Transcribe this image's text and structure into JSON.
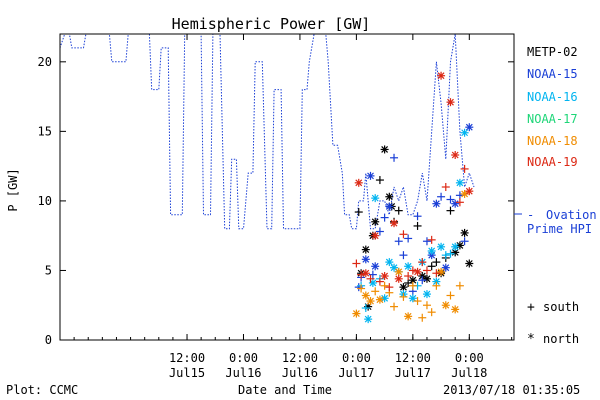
{
  "chart_data": {
    "type": "scatter",
    "title": "Hemispheric Power [GW]",
    "xlabel": "Date and Time",
    "ylabel": "P [GW]",
    "footer_left": "Plot: CCMC",
    "footer_right": "2013/07/18 01:35:05",
    "ylim": [
      0,
      22
    ],
    "xlim_hours": [
      -63,
      33.5
    ],
    "yticks": [
      0,
      5,
      10,
      15,
      20
    ],
    "xticks": [
      {
        "h": -36,
        "time": "12:00",
        "date": "Jul15"
      },
      {
        "h": -24,
        "time": "0:00",
        "date": "Jul16"
      },
      {
        "h": -12,
        "time": "12:00",
        "date": "Jul16"
      },
      {
        "h": 0,
        "time": "0:00",
        "date": "Jul17"
      },
      {
        "h": 12,
        "time": "12:00",
        "date": "Jul17"
      },
      {
        "h": 24,
        "time": "0:00",
        "date": "Jul18"
      }
    ],
    "legend": {
      "series": [
        {
          "name": "METP-02",
          "color": "#000000"
        },
        {
          "name": "NOAA-15",
          "color": "#1a3fd6"
        },
        {
          "name": "NOAA-16",
          "color": "#00b4f0"
        },
        {
          "name": "NOAA-17",
          "color": "#1ed678"
        },
        {
          "name": "NOAA-18",
          "color": "#f08c00"
        },
        {
          "name": "NOAA-19",
          "color": "#dc2814"
        }
      ],
      "model": {
        "name_line1": "Ovation",
        "name_line2": "Prime HPI",
        "color": "#1a3fd6",
        "marker": "- "
      },
      "symbols": [
        {
          "marker": "+",
          "label": "south"
        },
        {
          "marker": "*",
          "label": "north"
        }
      ]
    },
    "ovation_hpi": {
      "x": [
        -63,
        -62,
        -61,
        -60.5,
        -58,
        -57.5,
        -55,
        -53,
        -52.5,
        -52,
        -49,
        -48.5,
        -46,
        -45.5,
        -44,
        -43.5,
        -42,
        -41.5,
        -40,
        -39.5,
        -37,
        -36.5,
        -35,
        -34.5,
        -33,
        -32.5,
        -31,
        -30.5,
        -29,
        -28,
        -27,
        -26.5,
        -25.5,
        -25,
        -24,
        -23,
        -22,
        -21.5,
        -20,
        -19,
        -18,
        -17.5,
        -16,
        -15.5,
        -14,
        -13,
        -12,
        -11.5,
        -10.5,
        -10,
        -9,
        -8.5,
        -7,
        -6.5,
        -6,
        -5,
        -4,
        -3,
        -2.5,
        -1.5,
        -1,
        0,
        0.5,
        1.5,
        2,
        3,
        4,
        5,
        6,
        7,
        8,
        9,
        10,
        11,
        12,
        13,
        14,
        15,
        16,
        17,
        18,
        19,
        20,
        21,
        22,
        23,
        24,
        25
      ],
      "y": [
        21,
        22,
        22,
        21,
        21,
        22,
        22,
        22,
        22,
        20,
        20,
        22,
        22,
        22,
        22,
        18,
        18,
        21,
        21,
        9,
        9,
        22,
        22,
        22,
        22,
        9,
        9,
        22,
        22,
        8,
        8,
        13,
        13,
        8,
        8,
        12,
        12,
        20,
        20,
        8,
        8,
        18,
        18,
        8,
        8,
        8,
        8,
        18,
        18,
        20,
        22,
        22,
        22,
        22,
        20,
        14,
        14,
        12,
        9,
        9,
        8,
        8,
        10,
        10,
        12,
        8,
        8,
        10,
        10,
        9,
        11,
        10,
        11,
        9,
        9,
        10,
        12,
        10,
        15,
        20,
        17,
        13,
        20,
        22,
        15,
        11,
        12,
        11
      ]
    },
    "series": [
      {
        "name": "METP-02",
        "color": "#000000",
        "points": [
          [
            0.5,
            9.2,
            "+"
          ],
          [
            1,
            4.8,
            "*"
          ],
          [
            2,
            6.5,
            "*"
          ],
          [
            2.5,
            2.4,
            "*"
          ],
          [
            3.5,
            7.5,
            "*"
          ],
          [
            4,
            8.5,
            "*"
          ],
          [
            5,
            11.5,
            "+"
          ],
          [
            6,
            13.7,
            "*"
          ],
          [
            7,
            10.3,
            "*"
          ],
          [
            7.5,
            9.6,
            "*"
          ],
          [
            8,
            8.5,
            "+"
          ],
          [
            9,
            9.3,
            "+"
          ],
          [
            10,
            3.8,
            "*"
          ],
          [
            11,
            4.1,
            "+"
          ],
          [
            12,
            4.3,
            "*"
          ],
          [
            13,
            8.2,
            "+"
          ],
          [
            14,
            4.6,
            "*"
          ],
          [
            15,
            4.4,
            "*"
          ],
          [
            16,
            5.3,
            "+"
          ],
          [
            17,
            5.6,
            "+"
          ],
          [
            18,
            4.8,
            "*"
          ],
          [
            19,
            5.9,
            "+"
          ],
          [
            20,
            9.3,
            "+"
          ],
          [
            21,
            6.3,
            "*"
          ],
          [
            22,
            6.8,
            "*"
          ],
          [
            23,
            7.7,
            "*"
          ],
          [
            24,
            5.5,
            "*"
          ]
        ]
      },
      {
        "name": "NOAA-15",
        "color": "#1a3fd6",
        "points": [
          [
            0.5,
            3.8,
            "+"
          ],
          [
            1,
            4.5,
            "+"
          ],
          [
            2,
            5.8,
            "*"
          ],
          [
            3,
            11.8,
            "*"
          ],
          [
            3.5,
            4.7,
            "+"
          ],
          [
            4,
            5.3,
            "*"
          ],
          [
            5,
            7.8,
            "+"
          ],
          [
            6,
            8.8,
            "+"
          ],
          [
            7,
            9.6,
            "*"
          ],
          [
            8,
            13.1,
            "+"
          ],
          [
            9,
            7.1,
            "+"
          ],
          [
            10,
            6.1,
            "+"
          ],
          [
            11,
            7.3,
            "+"
          ],
          [
            12,
            3.5,
            "+"
          ],
          [
            13,
            8.9,
            "+"
          ],
          [
            14,
            4.3,
            "+"
          ],
          [
            15,
            7.1,
            "+"
          ],
          [
            16,
            6.1,
            "*"
          ],
          [
            17,
            9.8,
            "*"
          ],
          [
            18,
            10.3,
            "+"
          ],
          [
            19,
            5.2,
            "*"
          ],
          [
            20,
            10.1,
            "+"
          ],
          [
            21,
            9.8,
            "*"
          ],
          [
            22,
            10.4,
            "+"
          ],
          [
            23,
            7.1,
            "+"
          ],
          [
            24,
            15.3,
            "*"
          ]
        ]
      },
      {
        "name": "NOAA-16",
        "color": "#00b4f0",
        "points": [
          [
            1,
            3.9,
            "+"
          ],
          [
            2,
            2.3,
            "+"
          ],
          [
            2.5,
            1.5,
            "*"
          ],
          [
            3.5,
            4.1,
            "*"
          ],
          [
            4,
            10.2,
            "*"
          ],
          [
            5,
            4.4,
            "+"
          ],
          [
            6,
            3.0,
            "*"
          ],
          [
            7,
            5.6,
            "*"
          ],
          [
            8,
            5.2,
            "*"
          ],
          [
            9,
            4.9,
            "+"
          ],
          [
            10,
            3.3,
            "*"
          ],
          [
            11,
            5.3,
            "*"
          ],
          [
            12,
            3.0,
            "*"
          ],
          [
            13,
            3.9,
            "+"
          ],
          [
            14,
            5.6,
            "*"
          ],
          [
            15,
            3.3,
            "*"
          ],
          [
            16,
            6.4,
            "*"
          ],
          [
            17,
            4.2,
            "*"
          ],
          [
            18,
            6.7,
            "*"
          ],
          [
            19,
            6.1,
            "+"
          ],
          [
            20,
            6.2,
            "+"
          ],
          [
            21,
            6.7,
            "*"
          ],
          [
            22,
            11.3,
            "*"
          ],
          [
            23,
            14.9,
            "*"
          ]
        ]
      },
      {
        "name": "NOAA-18",
        "color": "#f08c00",
        "points": [
          [
            0,
            1.9,
            "*"
          ],
          [
            1,
            3.7,
            "+"
          ],
          [
            2,
            3.2,
            "*"
          ],
          [
            3,
            2.8,
            "*"
          ],
          [
            4,
            3.5,
            "+"
          ],
          [
            5,
            2.9,
            "*"
          ],
          [
            6,
            3.9,
            "+"
          ],
          [
            7,
            3.4,
            "+"
          ],
          [
            8,
            2.4,
            "+"
          ],
          [
            9,
            4.9,
            "*"
          ],
          [
            10,
            3.1,
            "+"
          ],
          [
            11,
            1.7,
            "*"
          ],
          [
            12,
            3.9,
            "+"
          ],
          [
            13,
            2.8,
            "+"
          ],
          [
            14,
            1.6,
            "+"
          ],
          [
            15,
            2.5,
            "+"
          ],
          [
            16,
            2.0,
            "+"
          ],
          [
            17,
            3.9,
            "+"
          ],
          [
            18,
            4.9,
            "*"
          ],
          [
            19,
            2.5,
            "*"
          ],
          [
            20,
            3.2,
            "+"
          ],
          [
            21,
            2.2,
            "*"
          ],
          [
            22,
            3.9,
            "+"
          ],
          [
            23,
            10.5,
            "*"
          ]
        ]
      },
      {
        "name": "NOAA-19",
        "color": "#dc2814",
        "points": [
          [
            0,
            5.5,
            "+"
          ],
          [
            0.5,
            11.3,
            "*"
          ],
          [
            1,
            4.7,
            "+"
          ],
          [
            2,
            4.8,
            "*"
          ],
          [
            3,
            4.4,
            "+"
          ],
          [
            4,
            7.5,
            "*"
          ],
          [
            5,
            4.2,
            "+"
          ],
          [
            6,
            4.6,
            "*"
          ],
          [
            7,
            3.8,
            "+"
          ],
          [
            8,
            8.4,
            "*"
          ],
          [
            9,
            4.4,
            "*"
          ],
          [
            10,
            7.6,
            "+"
          ],
          [
            11,
            4.6,
            "+"
          ],
          [
            12,
            5.0,
            "+"
          ],
          [
            13,
            4.9,
            "*"
          ],
          [
            14,
            5.6,
            "+"
          ],
          [
            15,
            5.0,
            "+"
          ],
          [
            16,
            7.2,
            "+"
          ],
          [
            17,
            4.8,
            "+"
          ],
          [
            18,
            19.0,
            "*"
          ],
          [
            19,
            11.0,
            "+"
          ],
          [
            20,
            17.1,
            "*"
          ],
          [
            21,
            13.3,
            "*"
          ],
          [
            22,
            9.9,
            "+"
          ],
          [
            23,
            12.3,
            "+"
          ],
          [
            24,
            10.7,
            "*"
          ]
        ]
      }
    ]
  }
}
